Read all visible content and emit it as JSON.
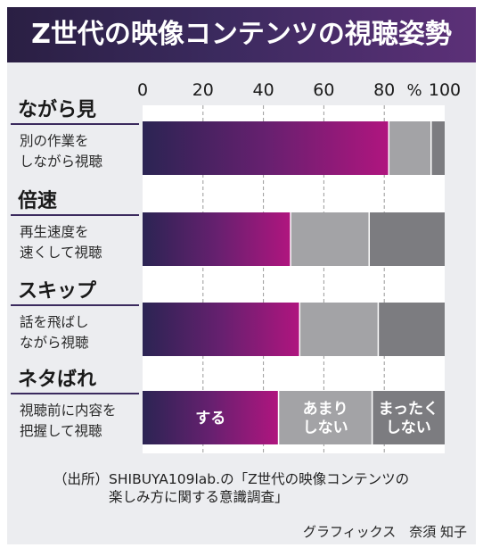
{
  "title": "Z世代の映像コンテンツの視聴姿勢",
  "chart_data": {
    "type": "bar",
    "orientation": "horizontal",
    "stacked": true,
    "xlim": [
      0,
      100
    ],
    "ticks": [
      0,
      20,
      40,
      60,
      80,
      100
    ],
    "tick_labels": [
      "0",
      "20",
      "40",
      "60",
      "80",
      "100"
    ],
    "unit": "%",
    "grid": true,
    "categories": [
      {
        "title": "ながら見",
        "desc": [
          "別の作業を",
          "しながら視聴"
        ]
      },
      {
        "title": "倍速",
        "desc": [
          "再生速度を",
          "速くして視聴"
        ]
      },
      {
        "title": "スキップ",
        "desc": [
          "話を飛ばし",
          "ながら視聴"
        ]
      },
      {
        "title": "ネタばれ",
        "desc": [
          "視聴前に内容を",
          "把握して視聴"
        ]
      }
    ],
    "series": [
      {
        "name": "する",
        "label_lines": [
          "する"
        ],
        "color": "#b0157f",
        "values": [
          81.5,
          49,
          52,
          45
        ]
      },
      {
        "name": "あまりしない",
        "label_lines": [
          "あまり",
          "しない"
        ],
        "color": "#a3a3a6",
        "values": [
          14,
          26,
          26,
          31
        ]
      },
      {
        "name": "まったくしない",
        "label_lines": [
          "まったく",
          "しない"
        ],
        "color": "#7c7c80",
        "values": [
          4.5,
          25,
          22,
          24
        ]
      }
    ]
  },
  "source": {
    "line1": "（出所）SHIBUYA109lab.の「Z世代の映像コンテンツの",
    "line2": "楽しみ方に関する意識調査」"
  },
  "credit": "グラフィックス　奈須 知子"
}
